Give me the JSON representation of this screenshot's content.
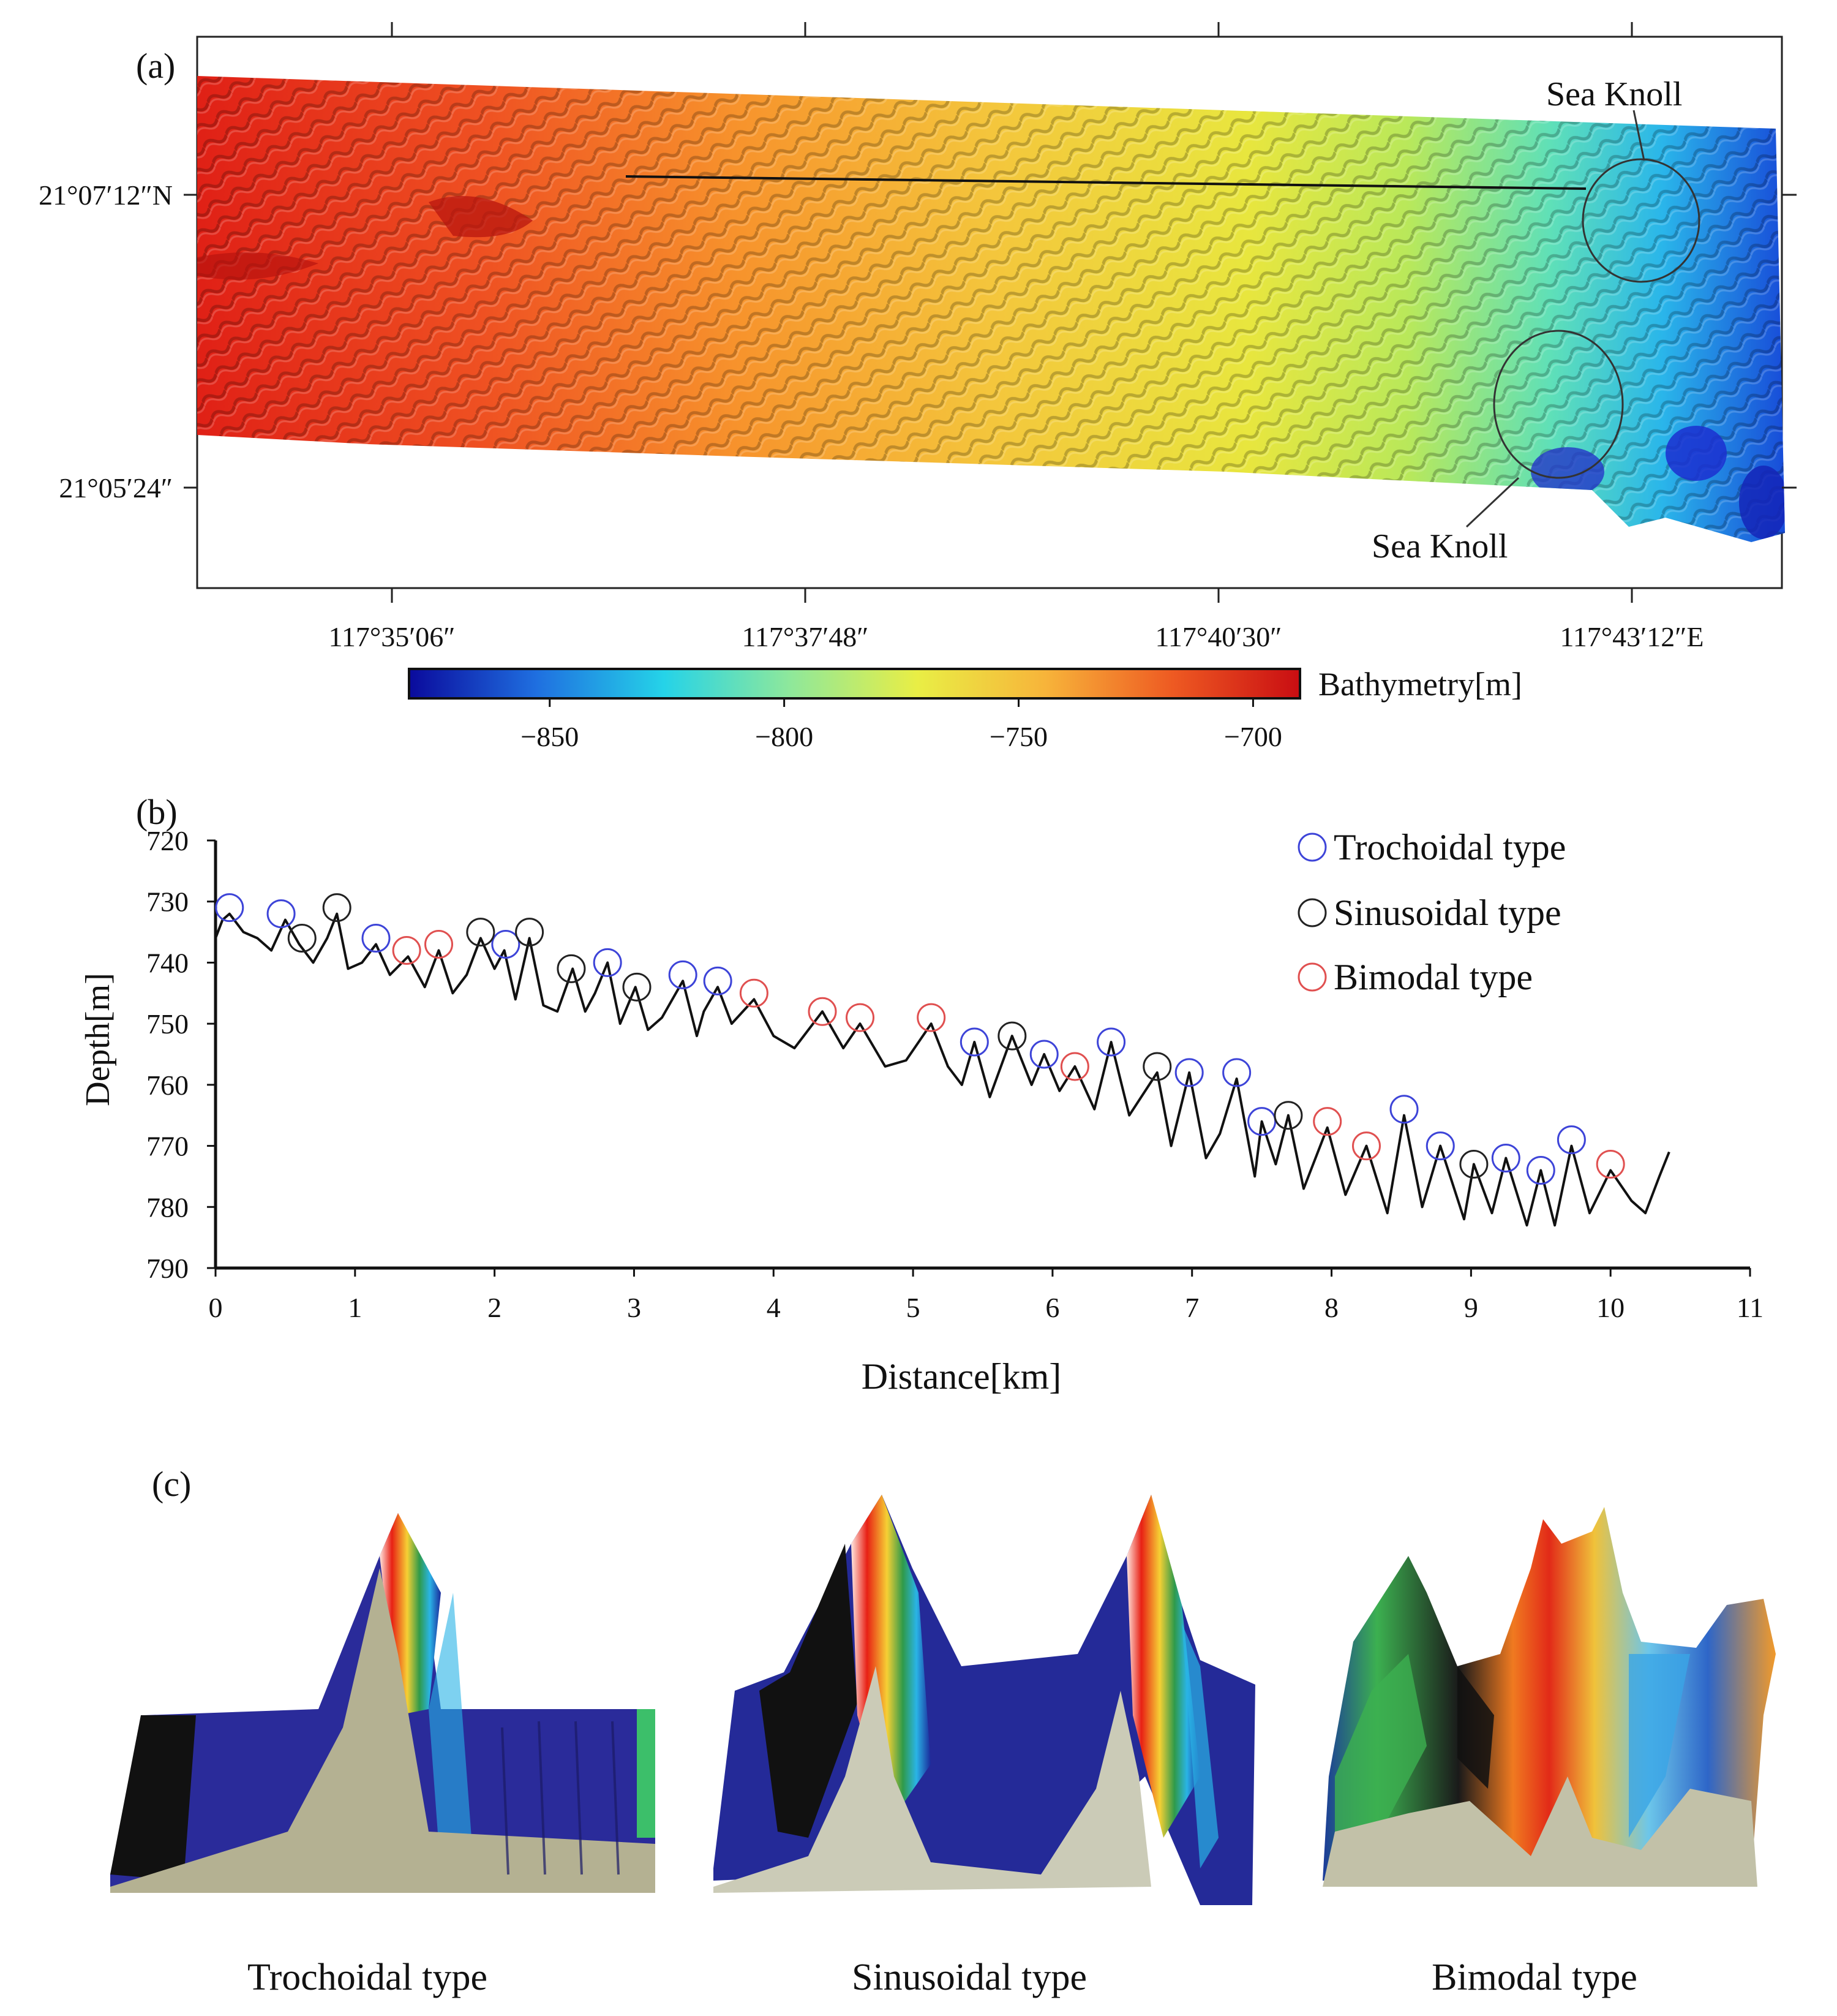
{
  "panels": {
    "a": {
      "label": "(a)",
      "knoll_top": "Sea Knoll",
      "knoll_bottom": "Sea Knoll",
      "lat_ticks": [
        "21°07′12″N",
        "21°05′24″"
      ],
      "lon_ticks": [
        "117°35′06″",
        "117°37′48″",
        "117°40′30″",
        "117°43′12″E"
      ],
      "colorbar": {
        "title": "Bathymetry[m]",
        "ticks": [
          -850,
          -800,
          -750,
          -700
        ],
        "tick_labels": [
          "−850",
          "−800",
          "−750",
          "−700"
        ],
        "range": [
          -880,
          -690
        ],
        "colors": [
          "#0a0a9c",
          "#1f6fe0",
          "#25d3e8",
          "#8fe89a",
          "#e9ee45",
          "#f7b43a",
          "#ee5a22",
          "#c90d12"
        ]
      }
    },
    "b": {
      "label": "(b)"
    },
    "c": {
      "label": "(c)",
      "types": [
        "Trochoidal type",
        "Sinusoidal type",
        "Bimodal type"
      ]
    }
  },
  "chart_data": {
    "type": "line",
    "title": "",
    "xlabel": "Distance[km]",
    "ylabel": "Depth[m]",
    "xlim": [
      0,
      11
    ],
    "ylim": [
      720,
      790
    ],
    "y_inverted": true,
    "xticks": [
      0,
      1,
      2,
      3,
      4,
      5,
      6,
      7,
      8,
      9,
      10,
      11
    ],
    "yticks": [
      720,
      730,
      740,
      750,
      760,
      770,
      780,
      790
    ],
    "profile": {
      "x": [
        0,
        0.05,
        0.1,
        0.2,
        0.3,
        0.4,
        0.5,
        0.6,
        0.7,
        0.8,
        0.87,
        0.95,
        1.05,
        1.15,
        1.25,
        1.38,
        1.5,
        1.6,
        1.7,
        1.8,
        1.9,
        2.0,
        2.07,
        2.15,
        2.25,
        2.35,
        2.45,
        2.56,
        2.65,
        2.72,
        2.81,
        2.9,
        3.01,
        3.1,
        3.2,
        3.35,
        3.45,
        3.5,
        3.6,
        3.7,
        3.86,
        4.0,
        4.15,
        4.35,
        4.5,
        4.62,
        4.8,
        4.95,
        5.13,
        5.25,
        5.35,
        5.44,
        5.55,
        5.71,
        5.85,
        5.94,
        6.05,
        6.16,
        6.3,
        6.42,
        6.55,
        6.75,
        6.85,
        6.98,
        7.1,
        7.2,
        7.32,
        7.45,
        7.5,
        7.6,
        7.69,
        7.8,
        7.97,
        8.1,
        8.25,
        8.4,
        8.52,
        8.65,
        8.78,
        8.95,
        9.02,
        9.15,
        9.25,
        9.4,
        9.5,
        9.6,
        9.72,
        9.85,
        10.0,
        10.15,
        10.25,
        10.35,
        10.42
      ],
      "y": [
        736,
        733,
        732,
        735,
        736,
        738,
        733,
        737,
        740,
        736,
        732,
        741,
        740,
        737,
        742,
        739,
        744,
        738,
        745,
        742,
        736,
        741,
        738,
        746,
        736,
        747,
        748,
        741,
        748,
        745,
        740,
        750,
        744,
        751,
        749,
        743,
        752,
        748,
        744,
        750,
        746,
        752,
        754,
        748,
        754,
        750,
        757,
        756,
        750,
        757,
        760,
        753,
        762,
        752,
        760,
        755,
        761,
        757,
        764,
        753,
        765,
        758,
        770,
        758,
        772,
        768,
        759,
        775,
        766,
        773,
        765,
        777,
        767,
        778,
        770,
        781,
        765,
        780,
        770,
        782,
        773,
        781,
        772,
        783,
        774,
        783,
        770,
        781,
        774,
        779,
        781,
        775,
        771
      ]
    },
    "series": [
      {
        "name": "Trochoidal type",
        "color": "#3d44d8",
        "points": [
          [
            0.1,
            731
          ],
          [
            0.47,
            732
          ],
          [
            1.15,
            736
          ],
          [
            2.08,
            737
          ],
          [
            2.81,
            740
          ],
          [
            3.35,
            742
          ],
          [
            3.6,
            743
          ],
          [
            5.44,
            753
          ],
          [
            5.94,
            755
          ],
          [
            6.42,
            753
          ],
          [
            6.98,
            758
          ],
          [
            7.32,
            758
          ],
          [
            7.5,
            766
          ],
          [
            8.52,
            764
          ],
          [
            8.78,
            770
          ],
          [
            9.25,
            772
          ],
          [
            9.5,
            774
          ],
          [
            9.72,
            769
          ]
        ]
      },
      {
        "name": "Sinusoidal type",
        "color": "#222222",
        "points": [
          [
            0.62,
            736
          ],
          [
            0.87,
            731
          ],
          [
            1.9,
            735
          ],
          [
            2.25,
            735
          ],
          [
            2.55,
            741
          ],
          [
            3.02,
            744
          ],
          [
            5.71,
            752
          ],
          [
            6.75,
            757
          ],
          [
            7.69,
            765
          ],
          [
            9.02,
            773
          ]
        ]
      },
      {
        "name": "Bimodal type",
        "color": "#e05050",
        "points": [
          [
            1.37,
            738
          ],
          [
            1.6,
            737
          ],
          [
            3.86,
            745
          ],
          [
            4.35,
            748
          ],
          [
            4.62,
            749
          ],
          [
            5.13,
            749
          ],
          [
            6.16,
            757
          ],
          [
            7.97,
            766
          ],
          [
            8.25,
            770
          ],
          [
            10.0,
            773
          ]
        ]
      }
    ]
  }
}
